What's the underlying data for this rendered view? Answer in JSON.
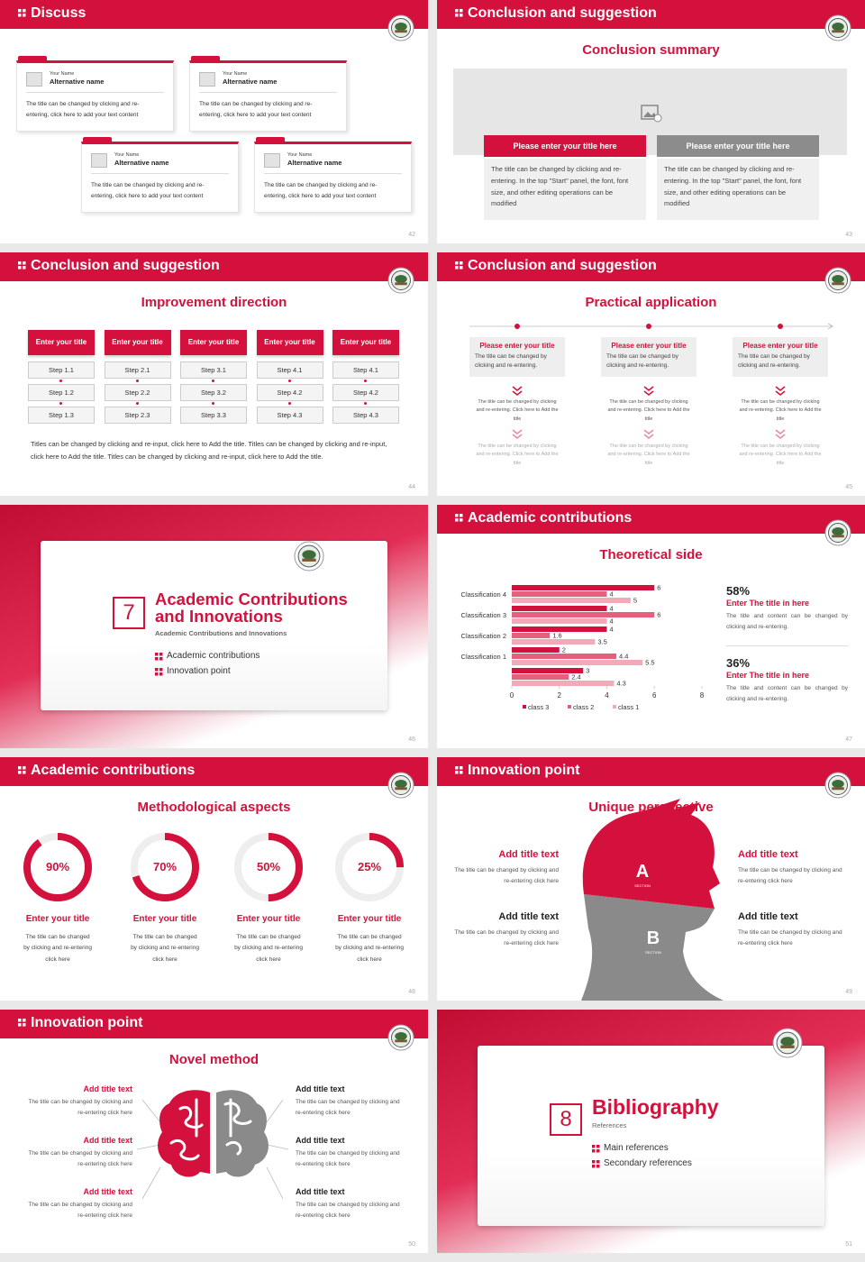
{
  "slides": [
    {
      "header": "Discuss",
      "page": "42",
      "cards": [
        {
          "name": "Your Name",
          "alt": "Alternative name",
          "text": "The title can be changed by clicking and re-entering, click here to add your text content"
        },
        {
          "name": "Your Name",
          "alt": "Alternative name",
          "text": "The title can be changed by clicking and re-entering, click here to add your text content"
        },
        {
          "name": "Your Name",
          "alt": "Alternative name",
          "text": "The title can be changed by clicking and re-entering, click here to add your text content"
        },
        {
          "name": "Your Name",
          "alt": "Alternative name",
          "text": "The title can be changed by clicking and re-entering, click here to add your text content"
        }
      ]
    },
    {
      "header": "Conclusion and suggestion",
      "subtitle": "Conclusion summary",
      "page": "43",
      "boxes": [
        {
          "title": "Please enter your title here",
          "text": "The title can be changed by clicking and re-entering. In the top \"Start\" panel, the font, font size, and other editing operations can be modified"
        },
        {
          "title": "Please enter your title here",
          "text": "The title can be changed by clicking and re-entering. In the top \"Start\" panel, the font, font size, and other editing operations can be modified"
        }
      ]
    },
    {
      "header": "Conclusion and suggestion",
      "subtitle": "Improvement direction",
      "page": "44",
      "columns": [
        {
          "title": "Enter your title",
          "steps": [
            "Step 1.1",
            "Step 1.2",
            "Step 1.3"
          ]
        },
        {
          "title": "Enter your title",
          "steps": [
            "Step 2.1",
            "Step 2.2",
            "Step 2.3"
          ]
        },
        {
          "title": "Enter your title",
          "steps": [
            "Step 3.1",
            "Step 3.2",
            "Step 3.3"
          ]
        },
        {
          "title": "Enter your title",
          "steps": [
            "Step 4.1",
            "Step 4.2",
            "Step 4.3"
          ]
        },
        {
          "title": "Enter your title",
          "steps": [
            "Step 4.1",
            "Step 4.2",
            "Step 4.3"
          ]
        }
      ],
      "text": "Titles can be changed by clicking and re-input, click here to Add the title. Titles can be changed by clicking and re-input, click here to Add the title. Titles can be changed by clicking and re-input, click here to Add the title."
    },
    {
      "header": "Conclusion and suggestion",
      "subtitle": "Practical application",
      "page": "45",
      "items": [
        {
          "title": "Please enter your title",
          "text": "The title can be changed by clicking and re-entering.",
          "detail1": "The title can be changed by clicking and re-entering. Click here to Add the title",
          "detail2": "The title can be changed by clicking and re-entering. Click here to Add the title"
        },
        {
          "title": "Please enter your title",
          "text": "The title can be changed by clicking and re-entering.",
          "detail1": "The title can be changed by clicking and re-entering. Click here to Add the title",
          "detail2": "The title can be changed by clicking and re-entering. Click here to Add the title"
        },
        {
          "title": "Please enter your title",
          "text": "The title can be changed by clicking and re-entering.",
          "detail1": "The title can be changed by clicking and re-entering. Click here to Add the title",
          "detail2": "The title can be changed by clicking and re-entering. Click here to Add the title"
        }
      ]
    },
    {
      "number": "7",
      "title": "Academic Contributions and Innovations",
      "subtitle": "Academic Contributions and Innovations",
      "items": [
        "Academic contributions",
        "Innovation point"
      ],
      "page": "46"
    },
    {
      "header": "Academic contributions",
      "subtitle": "Theoretical side",
      "page": "47",
      "stats": [
        {
          "value": "58%",
          "title": "Enter The title in here",
          "text": "The title and content can be changed by clicking and re-entering."
        },
        {
          "value": "36%",
          "title": "Enter The title in here",
          "text": "The title and content can be changed by clicking and re-entering."
        }
      ]
    },
    {
      "header": "Academic contributions",
      "subtitle": "Methodological aspects",
      "page": "48",
      "rings": [
        {
          "value": 90,
          "label": "90%",
          "title": "Enter your title",
          "text": "The title can be changed by clicking and re-entering click here"
        },
        {
          "value": 70,
          "label": "70%",
          "title": "Enter your title",
          "text": "The title can be changed by clicking and re-entering click here"
        },
        {
          "value": 50,
          "label": "50%",
          "title": "Enter your title",
          "text": "The title can be changed by clicking and re-entering click here"
        },
        {
          "value": 25,
          "label": "25%",
          "title": "Enter your title",
          "text": "The title can be changed by clicking and re-entering click here"
        }
      ]
    },
    {
      "header": "Innovation point",
      "subtitle": "Unique perspective",
      "page": "49",
      "letters": [
        "A",
        "B"
      ],
      "section": "SECTION",
      "items": [
        {
          "title": "Add title text",
          "text": "The title can be changed by clicking and re-entering click here"
        },
        {
          "title": "Add title text",
          "text": "The title can be changed by clicking and re-entering click here"
        },
        {
          "title": "Add title text",
          "text": "The title can be changed by clicking and re-entering click here"
        },
        {
          "title": "Add title text",
          "text": "The title can be changed by clicking and re-entering click here"
        }
      ]
    },
    {
      "header": "Innovation point",
      "subtitle": "Novel method",
      "page": "50",
      "items": [
        {
          "title": "Add title text",
          "text": "The title can be changed by clicking and re-entering click here"
        },
        {
          "title": "Add title text",
          "text": "The title can be changed by clicking and re-entering click here"
        },
        {
          "title": "Add title text",
          "text": "The title can be changed by clicking and re-entering click here"
        },
        {
          "title": "Add title text",
          "text": "The title can be changed by clicking and re-entering click here"
        },
        {
          "title": "Add title text",
          "text": "The title can be changed by clicking and re-entering click here"
        },
        {
          "title": "Add title text",
          "text": "The title can be changed by clicking and re-entering click here"
        }
      ]
    },
    {
      "number": "8",
      "title": "Bibliography",
      "subtitle": "References",
      "items": [
        "Main references",
        "Secondary references"
      ],
      "page": "51"
    }
  ],
  "chart_data": {
    "type": "bar",
    "orientation": "horizontal",
    "categories": [
      "Classification 4",
      "Classification 3",
      "Classification 2",
      "Classification 1",
      null
    ],
    "series": [
      {
        "name": "class 3",
        "color": "#d4113c",
        "values": [
          6,
          4,
          4,
          2,
          3
        ]
      },
      {
        "name": "class 2",
        "color": "#e4607c",
        "values": [
          4,
          6,
          1.6,
          4.4,
          2.4
        ]
      },
      {
        "name": "class 1",
        "color": "#f2a9b8",
        "values": [
          5,
          4,
          3.5,
          5.5,
          4.3
        ]
      }
    ],
    "xlim": [
      0,
      8
    ],
    "xticks": [
      0,
      2,
      4,
      6,
      8
    ],
    "grid": false
  }
}
